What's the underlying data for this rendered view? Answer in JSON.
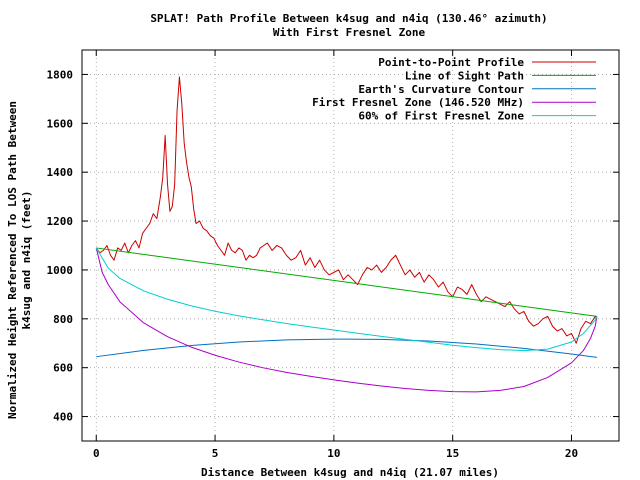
{
  "chart_data": {
    "type": "line",
    "title_line1": "SPLAT! Path Profile Between k4sug and n4iq (130.46° azimuth)",
    "title_line2": "With First Fresnel Zone",
    "xlabel": "Distance Between k4sug and n4iq (21.07 miles)",
    "ylabel_line1": "Normalized Height Referenced To LOS Path Between",
    "ylabel_line2": "k4sug and n4iq (feet)",
    "xlim": [
      -0.6,
      22.0
    ],
    "ylim": [
      300,
      1900
    ],
    "xticks": [
      0,
      5,
      10,
      15,
      20
    ],
    "yticks": [
      400,
      600,
      800,
      1000,
      1200,
      1400,
      1600,
      1800
    ],
    "xtick_labels": [
      "0",
      "5",
      "10",
      "15",
      "20"
    ],
    "ytick_labels": [
      "400",
      "600",
      "800",
      "1000",
      "1200",
      "1400",
      "1600",
      "1800"
    ],
    "grid": true,
    "legend_position": "top-right",
    "series": [
      {
        "name": "Point-to-Point Profile",
        "color": "#cc0000",
        "x": [
          0,
          0.15,
          0.3,
          0.45,
          0.6,
          0.75,
          0.9,
          1.05,
          1.2,
          1.35,
          1.5,
          1.65,
          1.8,
          1.95,
          2.1,
          2.25,
          2.4,
          2.55,
          2.7,
          2.8,
          2.9,
          3.0,
          3.1,
          3.2,
          3.3,
          3.4,
          3.5,
          3.6,
          3.7,
          3.8,
          3.9,
          4.0,
          4.1,
          4.2,
          4.35,
          4.5,
          4.65,
          4.8,
          4.95,
          5.1,
          5.25,
          5.4,
          5.55,
          5.7,
          5.85,
          6.0,
          6.15,
          6.3,
          6.45,
          6.6,
          6.75,
          6.9,
          7.05,
          7.2,
          7.4,
          7.6,
          7.8,
          8.0,
          8.2,
          8.4,
          8.6,
          8.8,
          9.0,
          9.2,
          9.4,
          9.6,
          9.8,
          10.0,
          10.2,
          10.4,
          10.6,
          10.8,
          11.0,
          11.2,
          11.4,
          11.6,
          11.8,
          12.0,
          12.2,
          12.4,
          12.6,
          12.8,
          13.0,
          13.2,
          13.4,
          13.6,
          13.8,
          14.0,
          14.2,
          14.4,
          14.6,
          14.8,
          15.0,
          15.2,
          15.4,
          15.6,
          15.8,
          16.0,
          16.2,
          16.4,
          16.6,
          16.8,
          17.0,
          17.2,
          17.4,
          17.6,
          17.8,
          18.0,
          18.2,
          18.4,
          18.6,
          18.8,
          19.0,
          19.2,
          19.4,
          19.6,
          19.8,
          20.0,
          20.2,
          20.4,
          20.6,
          20.8,
          21.0,
          21.07
        ],
        "y": [
          1090,
          1070,
          1080,
          1100,
          1060,
          1040,
          1090,
          1080,
          1110,
          1070,
          1100,
          1120,
          1090,
          1150,
          1170,
          1190,
          1230,
          1210,
          1300,
          1380,
          1550,
          1350,
          1240,
          1260,
          1350,
          1650,
          1790,
          1680,
          1520,
          1440,
          1380,
          1340,
          1250,
          1190,
          1200,
          1170,
          1160,
          1140,
          1130,
          1100,
          1080,
          1060,
          1110,
          1080,
          1070,
          1090,
          1080,
          1040,
          1060,
          1050,
          1060,
          1090,
          1100,
          1110,
          1080,
          1100,
          1090,
          1060,
          1040,
          1050,
          1080,
          1020,
          1050,
          1010,
          1040,
          1000,
          980,
          990,
          1000,
          960,
          980,
          960,
          940,
          980,
          1010,
          1000,
          1020,
          990,
          1010,
          1040,
          1060,
          1020,
          980,
          1000,
          970,
          990,
          950,
          980,
          960,
          930,
          950,
          910,
          890,
          930,
          920,
          900,
          940,
          900,
          870,
          890,
          880,
          870,
          860,
          850,
          870,
          840,
          820,
          830,
          790,
          770,
          780,
          800,
          810,
          770,
          750,
          760,
          730,
          740,
          700,
          760,
          790,
          780,
          810,
          800
        ]
      },
      {
        "name": "Line of Sight Path",
        "color": "#00aa00",
        "x": [
          0,
          21.07
        ],
        "y": [
          1090,
          810
        ]
      },
      {
        "name": "Earth's Curvature Contour",
        "color": "#0070c0",
        "x": [
          0,
          2,
          4,
          6,
          8,
          10,
          10.5,
          12,
          14,
          16,
          18,
          20,
          21.07
        ],
        "y": [
          645,
          671,
          691,
          705,
          714,
          717,
          717,
          716,
          709,
          697,
          679,
          656,
          642
        ]
      },
      {
        "name": "First Fresnel Zone (146.520 MHz)",
        "color": "#aa00cc",
        "x": [
          0,
          0.25,
          0.5,
          1,
          2,
          3,
          4,
          5,
          6,
          7,
          8,
          9,
          10,
          11,
          12,
          13,
          14,
          15,
          16,
          17,
          18,
          19,
          20,
          20.5,
          20.8,
          21.0,
          21.07
        ],
        "y": [
          1090,
          990,
          941,
          869,
          783,
          727,
          684,
          651,
          623,
          600,
          581,
          565,
          550,
          537,
          525,
          515,
          507,
          502,
          501,
          507,
          523,
          560,
          620,
          670,
          720,
          770,
          810
        ]
      },
      {
        "name": "60% of First Fresnel Zone",
        "color": "#00d0d0",
        "x": [
          0,
          0.5,
          1,
          2,
          3,
          4,
          5,
          6,
          7,
          8,
          9,
          10,
          11,
          12,
          13,
          14,
          15,
          16,
          17,
          18,
          19,
          20,
          20.5,
          21.0,
          21.07
        ],
        "y": [
          1090,
          1008,
          965,
          914,
          880,
          853,
          831,
          812,
          796,
          781,
          767,
          754,
          741,
          728,
          716,
          704,
          692,
          682,
          674,
          670,
          676,
          705,
          740,
          795,
          810
        ]
      }
    ]
  }
}
